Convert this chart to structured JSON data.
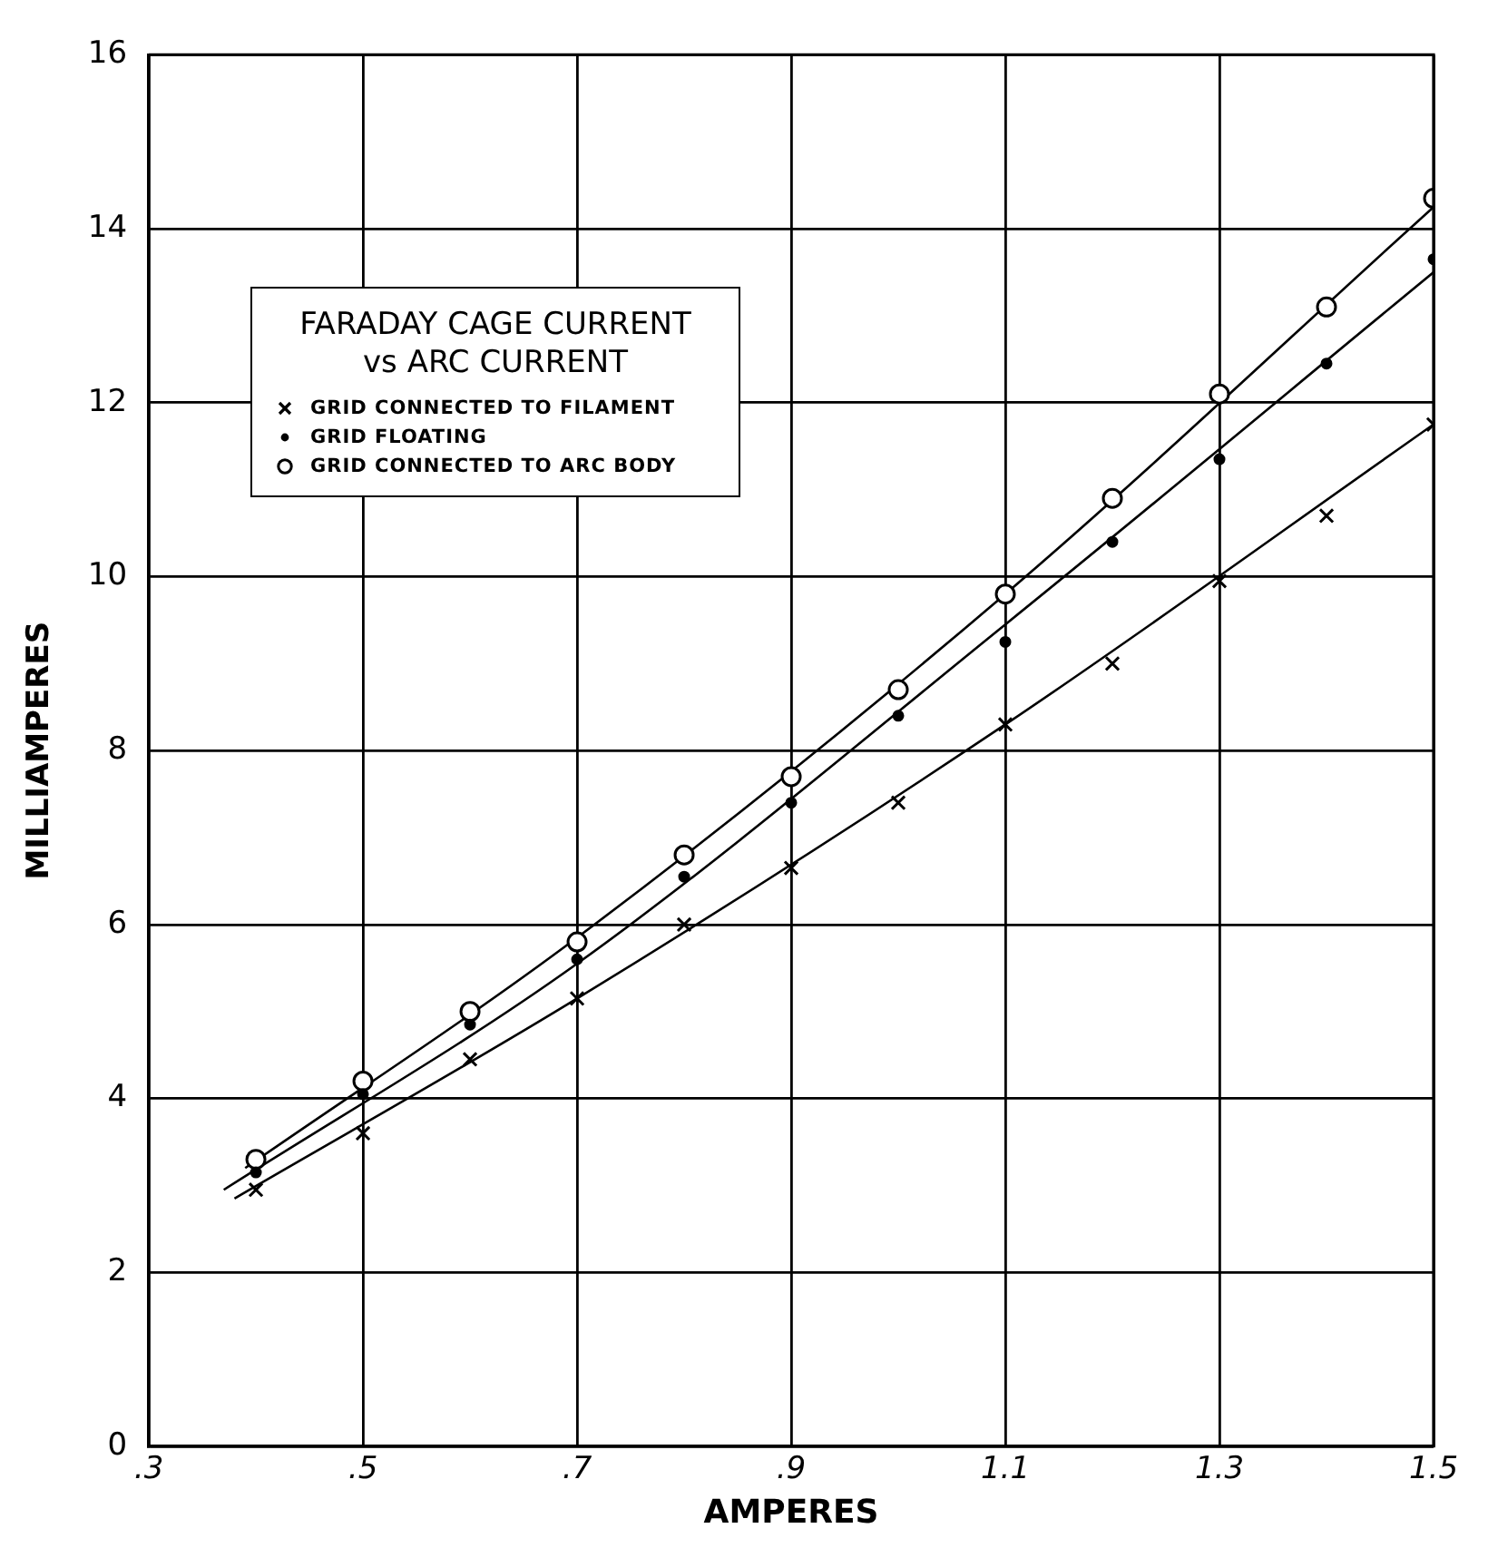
{
  "chart_data": {
    "type": "scatter",
    "title": "FARADAY CAGE CURRENT vs ARC CURRENT",
    "xlabel": "AMPERES",
    "ylabel": "MILLIAMPERES",
    "x": [
      0.4,
      0.5,
      0.6,
      0.7,
      0.8,
      0.9,
      1.0,
      1.1,
      1.2,
      1.3,
      1.4,
      1.5
    ],
    "series": [
      {
        "name": "GRID CONNECTED TO FILAMENT",
        "color": "#000000",
        "marker": "cross",
        "values": [
          2.95,
          3.6,
          4.45,
          5.15,
          6.0,
          6.65,
          7.4,
          8.3,
          9.0,
          9.95,
          10.7,
          11.75
        ]
      },
      {
        "name": "GRID FLOATING",
        "color": "#000000",
        "marker": "dot",
        "values": [
          3.15,
          4.05,
          4.85,
          5.6,
          6.55,
          7.4,
          8.4,
          9.25,
          10.4,
          11.35,
          12.45,
          13.65
        ]
      },
      {
        "name": "GRID CONNECTED TO ARC BODY",
        "color": "#000000",
        "marker": "circle",
        "values": [
          3.3,
          4.2,
          5.0,
          5.8,
          6.8,
          7.7,
          8.7,
          9.8,
          10.9,
          12.1,
          13.1,
          14.35
        ]
      },
      {
        "type": "line",
        "color": "#000000",
        "marker": "none",
        "x": [
          0.38,
          0.7,
          1.1,
          1.5
        ],
        "values": [
          2.85,
          5.15,
          8.3,
          11.75
        ]
      },
      {
        "type": "line",
        "color": "#000000",
        "marker": "none",
        "x": [
          0.37,
          0.7,
          1.1,
          1.5
        ],
        "values": [
          2.95,
          5.55,
          9.45,
          13.5
        ]
      },
      {
        "type": "line",
        "color": "#000000",
        "marker": "none",
        "x": [
          0.39,
          0.7,
          1.1,
          1.5
        ],
        "values": [
          3.2,
          5.85,
          9.8,
          14.25
        ]
      }
    ],
    "xlim": [
      0.3,
      1.5
    ],
    "xticks": [
      {
        "value": 0.3,
        "label": ".3"
      },
      {
        "value": 0.5,
        "label": ".5"
      },
      {
        "value": 0.7,
        "label": ".7"
      },
      {
        "value": 0.9,
        "label": ".9"
      },
      {
        "value": 1.1,
        "label": "1.1"
      },
      {
        "value": 1.3,
        "label": "1.3"
      },
      {
        "value": 1.5,
        "label": "1.5"
      }
    ],
    "ylim": [
      0,
      16
    ],
    "yticks": [
      0,
      2,
      4,
      6,
      8,
      10,
      12,
      14,
      16
    ],
    "grid": true,
    "legend": "top left"
  }
}
